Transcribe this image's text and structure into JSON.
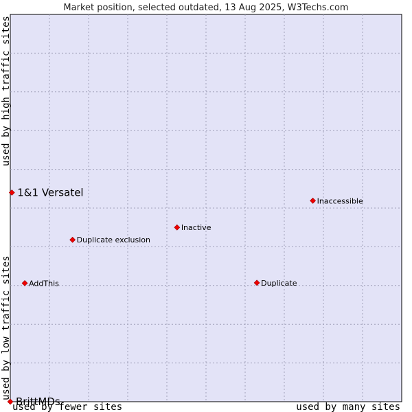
{
  "chart_data": {
    "type": "scatter",
    "title": "Market position, selected outdated, 13 Aug 2025, W3Techs.com",
    "xlabel_left": "used by fewer sites",
    "xlabel_right": "used by many sites",
    "ylabel_low": "used by low traffic sites",
    "ylabel_high": "used by high traffic sites",
    "xlim": [
      0,
      100
    ],
    "ylim": [
      0,
      100
    ],
    "grid": true,
    "marker_color": "#ee0000",
    "plot_background": "#e3e3f7",
    "points": [
      {
        "label": "1&1 Versatel",
        "x": 0.4,
        "y": 54.0,
        "emphasis": true
      },
      {
        "label": "BrittMDs",
        "x": 0.0,
        "y": 0.0,
        "emphasis": true
      },
      {
        "label": "Inaccessible",
        "x": 77.3,
        "y": 51.9,
        "emphasis": false
      },
      {
        "label": "Inactive",
        "x": 42.6,
        "y": 45.0,
        "emphasis": false
      },
      {
        "label": "Duplicate exclusion",
        "x": 15.9,
        "y": 41.8,
        "emphasis": false
      },
      {
        "label": "AddThis",
        "x": 3.7,
        "y": 30.6,
        "emphasis": false
      },
      {
        "label": "Duplicate",
        "x": 63.0,
        "y": 30.7,
        "emphasis": false
      }
    ]
  }
}
